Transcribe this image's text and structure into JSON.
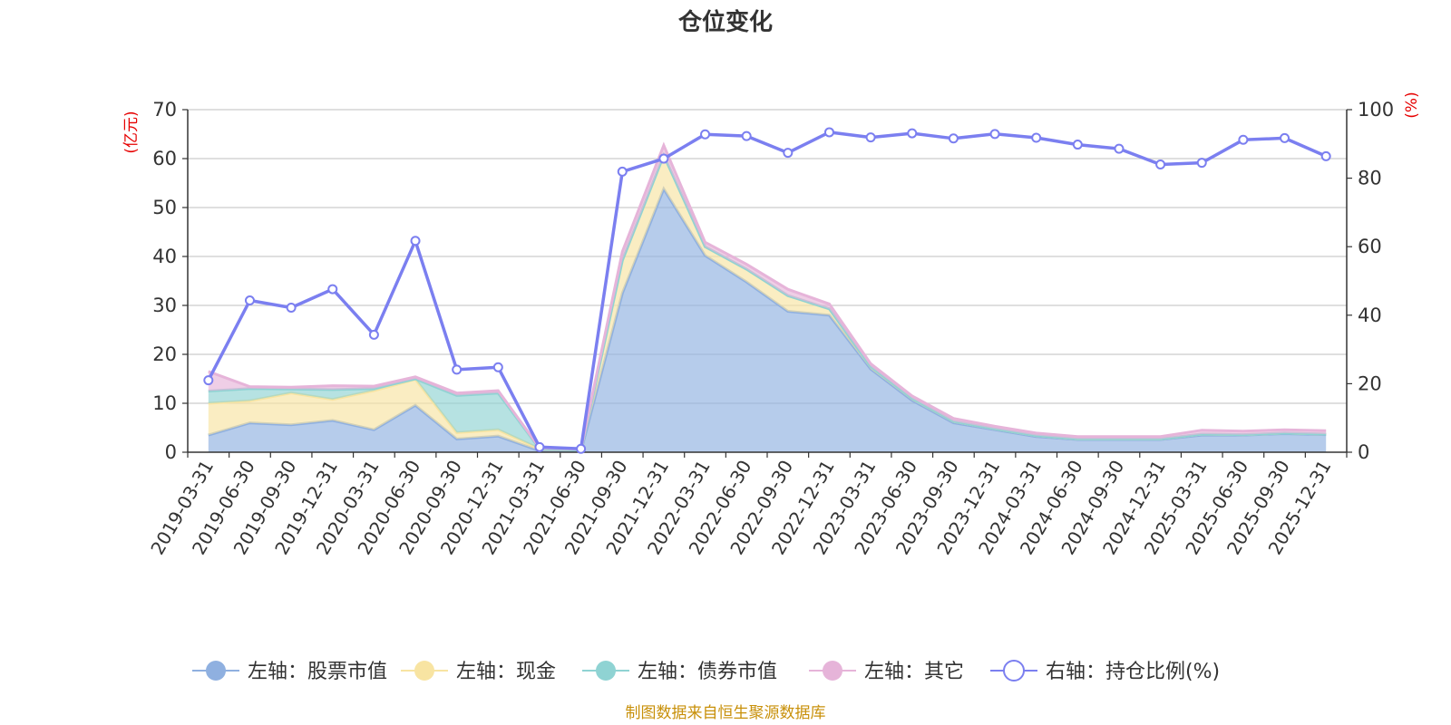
{
  "chart_data": {
    "type": "area",
    "title": "仓位变化",
    "left_axis": {
      "unit": "(亿元)",
      "ylim": [
        0,
        70
      ],
      "ticks": [
        0,
        10,
        20,
        30,
        40,
        50,
        60,
        70
      ]
    },
    "right_axis": {
      "unit": "(%)",
      "ylim": [
        0,
        100
      ],
      "ticks": [
        0,
        20,
        40,
        60,
        80,
        100
      ]
    },
    "categories": [
      "2019-03-31",
      "2019-06-30",
      "2019-09-30",
      "2019-12-31",
      "2020-03-31",
      "2020-06-30",
      "2020-09-30",
      "2020-12-31",
      "2021-03-31",
      "2021-06-30",
      "2021-09-30",
      "2021-12-31",
      "2022-03-31",
      "2022-06-30",
      "2022-09-30",
      "2022-12-31",
      "2023-03-31",
      "2023-06-30",
      "2023-09-30",
      "2023-12-31",
      "2024-03-31",
      "2024-06-30",
      "2024-09-30",
      "2024-12-31",
      "2025-03-31",
      "2025-06-30",
      "2025-09-30",
      "2025-12-31"
    ],
    "series": [
      {
        "name": "左轴：股票市值",
        "axis": "left",
        "kind": "stacked-area",
        "color": "#8fb0e0",
        "values": [
          3.5,
          6,
          5.6,
          6.5,
          4.6,
          9.6,
          2.7,
          3.3,
          0.3,
          0.2,
          32.5,
          53.8,
          40.2,
          34.8,
          28.8,
          28,
          17,
          10.6,
          6,
          4.6,
          3.2,
          2.6,
          2.6,
          2.6,
          3.5,
          3.5,
          3.8,
          3.6
        ]
      },
      {
        "name": "左轴：现金",
        "axis": "left",
        "kind": "stacked-area",
        "color": "#f8e4a2",
        "values": [
          6.5,
          4.5,
          6.5,
          4.3,
          8,
          5.3,
          1.3,
          1.3,
          0.4,
          0.2,
          6.7,
          6.9,
          1.8,
          2.6,
          3.2,
          1.3,
          0.5,
          0.4,
          0.3,
          0.2,
          0.2,
          0.1,
          0.1,
          0.1,
          0.2,
          0.1,
          0.1,
          0.1
        ]
      },
      {
        "name": "左轴：债券市值",
        "axis": "left",
        "kind": "stacked-area",
        "color": "#8fd3d3",
        "values": [
          2.5,
          2.5,
          0.8,
          2,
          0.4,
          0.1,
          7.6,
          7.5,
          0,
          0,
          0,
          0,
          0,
          0,
          0,
          0,
          0,
          0,
          0,
          0,
          0,
          0,
          0,
          0,
          0,
          0,
          0,
          0
        ]
      },
      {
        "name": "左轴：其它",
        "axis": "left",
        "kind": "stacked-area",
        "color": "#e6b4d9",
        "values": [
          4,
          0.4,
          0.4,
          0.8,
          0.5,
          0.4,
          0.5,
          0.5,
          0.2,
          0.2,
          1.8,
          2,
          0.9,
          1,
          1.3,
          1,
          0.6,
          0.5,
          0.6,
          0.5,
          0.5,
          0.5,
          0.5,
          0.5,
          0.8,
          0.7,
          0.7,
          0.7
        ]
      },
      {
        "name": "右轴：持仓比例(%)",
        "axis": "right",
        "kind": "line",
        "color": "#7b7ff0",
        "values": [
          21,
          44.3,
          42.2,
          47.6,
          34.3,
          61.7,
          24.1,
          24.8,
          1.5,
          1,
          81.9,
          85.7,
          92.8,
          92.3,
          87.4,
          93.4,
          91.9,
          93.1,
          91.6,
          92.9,
          91.8,
          89.8,
          88.6,
          84,
          84.5,
          91.2,
          91.7,
          86.4
        ]
      }
    ]
  },
  "footer": {
    "source": "制图数据来自恒生聚源数据库"
  }
}
